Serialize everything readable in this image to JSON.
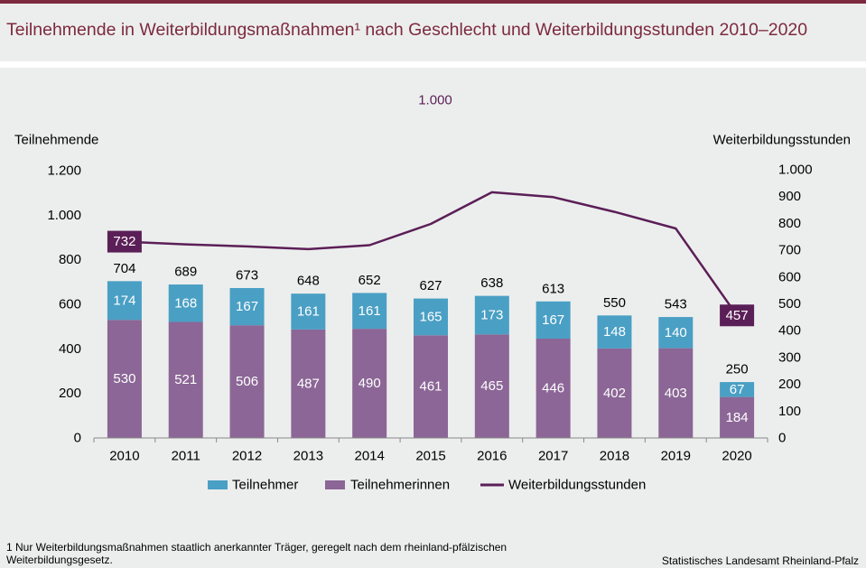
{
  "title": "Teilnehmende in Weiterbildungsmaßnahmen¹ nach Geschlecht und Weiterbildungsstunden 2010–2020",
  "footnote": "1 Nur Weiterbildungsmaßnahmen  staatlich anerkannter Träger,  geregelt  nach dem rheinland-pfälzischen Weiterbildungsgesetz.",
  "source": "Statistisches Landesamt Rheinland-Pfalz",
  "colors": {
    "teilnehmer": "#4a9fc4",
    "teilnehmerinnen": "#8b6696",
    "stunden": "#5b1f57",
    "title": "#7d2a3e"
  },
  "chart_data": {
    "type": "bar",
    "stacked": true,
    "categories": [
      "2010",
      "2011",
      "2012",
      "2013",
      "2014",
      "2015",
      "2016",
      "2017",
      "2018",
      "2019",
      "2020"
    ],
    "series": [
      {
        "name": "Teilnehmerinnen",
        "axis": "left",
        "values": [
          530,
          521,
          506,
          487,
          490,
          461,
          465,
          446,
          402,
          403,
          184
        ]
      },
      {
        "name": "Teilnehmer",
        "axis": "left",
        "values": [
          174,
          168,
          167,
          161,
          161,
          165,
          173,
          167,
          148,
          140,
          67
        ]
      },
      {
        "name": "Weiterbildungsstunden",
        "type": "line",
        "axis": "right",
        "unit_label": "1.000",
        "values": [
          732,
          722,
          714,
          704,
          719,
          798,
          916,
          898,
          843,
          781,
          457
        ]
      }
    ],
    "totals": [
      704,
      689,
      673,
      648,
      652,
      627,
      638,
      613,
      550,
      543,
      250
    ],
    "unit_label": "1.000",
    "ylabel_left": "Teilnehmende",
    "ylabel_right": "Weiterbildungsstunden",
    "ylim_left": [
      0,
      1200
    ],
    "ylim_right": [
      0,
      1000
    ],
    "yticks_left": [
      {
        "value": 0,
        "label": "0"
      },
      {
        "value": 200,
        "label": "200"
      },
      {
        "value": 400,
        "label": "400"
      },
      {
        "value": 600,
        "label": "600"
      },
      {
        "value": 800,
        "label": "800"
      },
      {
        "value": 1000,
        "label": "1.000"
      },
      {
        "value": 1200,
        "label": "1.200"
      }
    ],
    "yticks_right": [
      {
        "value": 0,
        "label": "0"
      },
      {
        "value": 100,
        "label": "100"
      },
      {
        "value": 200,
        "label": "200"
      },
      {
        "value": 300,
        "label": "300"
      },
      {
        "value": 400,
        "label": "400"
      },
      {
        "value": 500,
        "label": "500"
      },
      {
        "value": 600,
        "label": "600"
      },
      {
        "value": 700,
        "label": "700"
      },
      {
        "value": 800,
        "label": "800"
      },
      {
        "value": 900,
        "label": "900"
      },
      {
        "value": 1000,
        "label": "1.000"
      }
    ],
    "line_labels": [
      {
        "index": 0,
        "text": "732"
      },
      {
        "index": 10,
        "text": "457"
      }
    ],
    "legend": [
      "Teilnehmer",
      "Teilnehmerinnen",
      "Weiterbildungsstunden"
    ],
    "legend_position": "bottom",
    "grid": false
  }
}
